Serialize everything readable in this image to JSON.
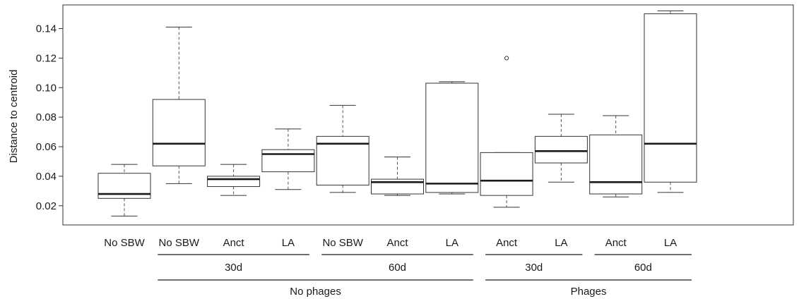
{
  "chart_data": {
    "type": "box",
    "ylabel": "Distance to centroid",
    "ylim": [
      0.007,
      0.156
    ],
    "yticks": [
      0.02,
      0.04,
      0.06,
      0.08,
      0.1,
      0.12,
      0.14
    ],
    "ytick_labels": [
      "0.02",
      "0.04",
      "0.06",
      "0.08",
      "0.10",
      "0.12",
      "0.14"
    ],
    "categories": [
      "No SBW",
      "No SBW",
      "Anct",
      "LA",
      "No SBW",
      "Anct",
      "LA",
      "Anct",
      "LA",
      "Anct",
      "LA"
    ],
    "boxes": [
      {
        "label": "No SBW",
        "whisker_low": 0.013,
        "q1": 0.025,
        "median": 0.028,
        "q3": 0.042,
        "whisker_high": 0.048,
        "outliers": []
      },
      {
        "label": "No SBW",
        "whisker_low": 0.035,
        "q1": 0.047,
        "median": 0.062,
        "q3": 0.092,
        "whisker_high": 0.141,
        "outliers": []
      },
      {
        "label": "Anct",
        "whisker_low": 0.027,
        "q1": 0.033,
        "median": 0.038,
        "q3": 0.04,
        "whisker_high": 0.048,
        "outliers": []
      },
      {
        "label": "LA",
        "whisker_low": 0.031,
        "q1": 0.043,
        "median": 0.055,
        "q3": 0.058,
        "whisker_high": 0.072,
        "outliers": []
      },
      {
        "label": "No SBW",
        "whisker_low": 0.029,
        "q1": 0.034,
        "median": 0.062,
        "q3": 0.067,
        "whisker_high": 0.088,
        "outliers": []
      },
      {
        "label": "Anct",
        "whisker_low": 0.027,
        "q1": 0.028,
        "median": 0.036,
        "q3": 0.038,
        "whisker_high": 0.053,
        "outliers": []
      },
      {
        "label": "LA",
        "whisker_low": 0.028,
        "q1": 0.029,
        "median": 0.035,
        "q3": 0.103,
        "whisker_high": 0.104,
        "outliers": []
      },
      {
        "label": "Anct",
        "whisker_low": 0.019,
        "q1": 0.027,
        "median": 0.037,
        "q3": 0.056,
        "whisker_high": 0.056,
        "outliers": [
          0.12
        ]
      },
      {
        "label": "LA",
        "whisker_low": 0.036,
        "q1": 0.049,
        "median": 0.057,
        "q3": 0.067,
        "whisker_high": 0.082,
        "outliers": []
      },
      {
        "label": "Anct",
        "whisker_low": 0.026,
        "q1": 0.028,
        "median": 0.036,
        "q3": 0.068,
        "whisker_high": 0.081,
        "outliers": []
      },
      {
        "label": "LA",
        "whisker_low": 0.029,
        "q1": 0.036,
        "median": 0.062,
        "q3": 0.15,
        "whisker_high": 0.152,
        "outliers": []
      }
    ],
    "group_labels": [
      {
        "text": "30d",
        "from": 1,
        "to": 3
      },
      {
        "text": "60d",
        "from": 4,
        "to": 6
      },
      {
        "text": "30d",
        "from": 7,
        "to": 8
      },
      {
        "text": "60d",
        "from": 9,
        "to": 10
      }
    ],
    "supergroup_labels": [
      {
        "text": "No phages",
        "from": 1,
        "to": 6
      },
      {
        "text": "Phages",
        "from": 7,
        "to": 10
      }
    ],
    "grid": false
  }
}
